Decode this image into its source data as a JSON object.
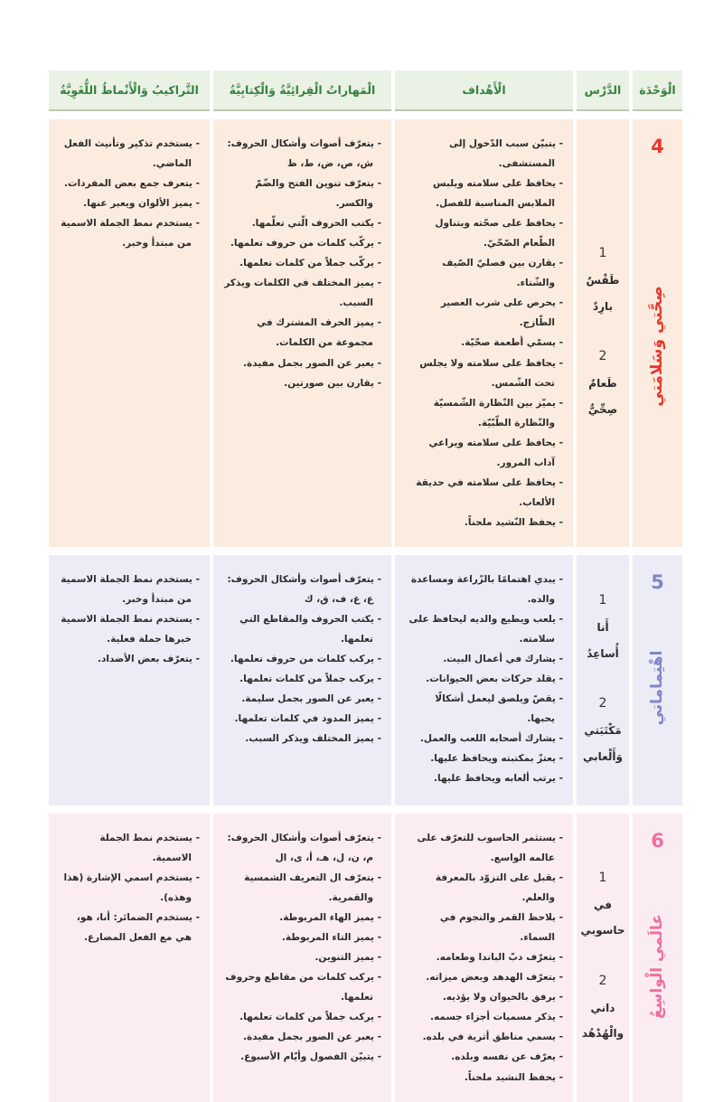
{
  "table": {
    "header_text_color": "#35823c",
    "header_bg_color": "#eaf1e5",
    "headers": {
      "unit": "الْوَحْدَة",
      "lesson": "الدَّرْس",
      "objectives": "الْأَهْداف",
      "skills": "الْمَهاراتُ الْقِرائِيَّةُ وَالْكِتابِيَّةُ",
      "structures": "التَّراكيبُ وَالْأَنْماطُ اللُّغَوِيَّةُ"
    }
  },
  "units": [
    {
      "number": "4",
      "title": "صِحَّتي وَسَلامَتي",
      "accent_color": "#e8362b",
      "bg_color": "#fcecdf",
      "lessons": [
        {
          "number": "1",
          "title": "طَقْسٌ بارِدٌ"
        },
        {
          "number": "2",
          "title": "طَعامٌ صِحِّيٌّ"
        }
      ],
      "objectives": [
        "يتبيّن سبب الدّخول إلى المستشفى.",
        "يحافظ على سلامته ويلبس الملابس المناسبة للفصل.",
        "يحافظ على صحّته ويتناول الطّعام الصّحّيّ.",
        "يقارن بين فصليّ الصّيف والشّتاء.",
        "يحرص على شرب العصير الطّازج.",
        "يسمّي أطعمة صحّيّة.",
        "يحافظ على سلامته ولا يجلس تحت الشّمس.",
        "يميّز بين النّظارة الشّمسيّة والنّظارة الطّبّيّة.",
        "يحافظ على سلامته ويراعي آداب المرور.",
        "يحافظ على سلامته في حديقة الألعاب.",
        "يحفظ النّشيد ملحناً."
      ],
      "skills": [
        "يتعرّف أصوات وأشكال الحروف: ش، ص، ض، ط، ظ",
        "يتعرّف تنوين الفتح والضّمّ والكسر.",
        "يكتب الحروف الّتي تعلّمها.",
        "يركّب كلمات من حروف تعلمها.",
        "يركّب جملاً من كلمات تعلمها.",
        "يميز المختلف في الكلمات ويذكر السبب.",
        "يميز الحرف المشترك في مجموعة من الكلمات.",
        "يعبر عن الصور بجمل مفيدة.",
        "يقارن بين صورتين."
      ],
      "structures": [
        "يستخدم تذكير وتأنيث الفعل الماضي.",
        "يتعرف جمع بعض المفردات.",
        "يميز الألوان ويعبر عنها.",
        "يستخدم نمط الجملة الاسمية من مبتدأ وخبر."
      ]
    },
    {
      "number": "5",
      "title": "اهْتِماماتي",
      "accent_color": "#8185c6",
      "bg_color": "#ececf6",
      "lessons": [
        {
          "number": "1",
          "title": "أَنا أُساعِدُ"
        },
        {
          "number": "2",
          "title": "مَكْتَبَتي وَأَلْعابي"
        }
      ],
      "objectives": [
        "يبدي اهتمامًا بالزّراعة ومساعدة والده.",
        "يلعب ويطيع والديه ليحافظ على سلامته.",
        "يشارك في أعمال البيت.",
        "يقلد حركات بعض الحيوانات.",
        "يقصّ ويلصق ليعمل أشكالًا يحبها.",
        "يشارك أصحابه اللعب والعمل.",
        "يعتزّ بمكتبته ويحافظ عليها.",
        "يرتب ألعابه ويحافظ عليها."
      ],
      "skills": [
        "يتعرّف أصوات وأشكال الحروف: ع، غ، ف، ق، ك",
        "يكتب الحروف والمقاطع التي تعلمها.",
        "يركب كلمات من حروف تعلمها.",
        "يركب جملاً من كلمات تعلمها.",
        "يعبر عن الصور بجمل سليمة.",
        "يميز المدود في كلمات تعلمها.",
        "يميز المختلف ويذكر السبب."
      ],
      "structures": [
        "يستخدم نمط الجملة الاسمية من مبتدأ وخبر.",
        "يستخدم نمط الجملة الاسمية خبرها جملة فعلية.",
        "يتعرّف بعض الأضداد."
      ]
    },
    {
      "number": "6",
      "title": "عالَمي الْواسِعُ",
      "accent_color": "#ee6f9f",
      "bg_color": "#fbecf1",
      "lessons": [
        {
          "number": "1",
          "title": "في حاسوبي"
        },
        {
          "number": "2",
          "title": "داني والْهُدْهُد"
        }
      ],
      "objectives": [
        "يستثمر الحاسوب للتعرّف على عالمه الواسع.",
        "يقبل على التزوّد بالمعرفة والعلم.",
        "يلاحظ القمر والنجوم في السماء.",
        "يتعرّف دبّ الباندا وطعامه.",
        "يتعرّف الهدهد وبعض ميزاته.",
        "يرفق بالحيوان ولا يؤذيه.",
        "يذكر مسميات أجزاء جسمه.",
        "يسمي مناطق أثرية في بلده.",
        "يعرّف عن نفسه وبلده.",
        "يحفظ النشيد ملحناً."
      ],
      "skills": [
        "يتعرّف أصوات وأشكال الحروف: م، ن، ل، هـ، أ، ى، ال",
        "يتعرّف ال التعريف الشمسية والقمرية.",
        "يميز الهاء المربوطة.",
        "يميز التاء المربوطة.",
        "يميز التنوين.",
        "يركب كلمات من مقاطع وحروف تعلمها.",
        "يركب جملاً من كلمات تعلمها.",
        "يعبر عن الصور بجمل مفيدة.",
        "يتبيّن الفصول وأيّام الأسبوع."
      ],
      "structures": [
        "يستخدم نمط الجملة الاسمية.",
        "يستخدم اسمي الإشارة (هذا وهذه).",
        "يستخدم الضمائر: أنا، هو، هي مع الفعل المضارع."
      ]
    }
  ]
}
